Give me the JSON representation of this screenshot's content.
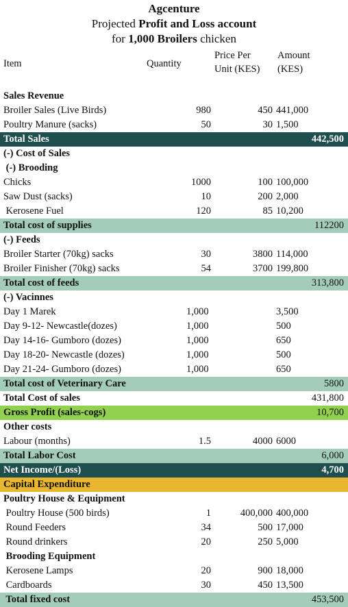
{
  "title": {
    "company": "Agcenture",
    "line2_pre": "Projected ",
    "line2_bold": "Profit and Loss account",
    "line3_pre": "for ",
    "line3_bold": "1,000 Broilers",
    "line3_post": " chicken"
  },
  "headers": {
    "item": "Item",
    "quantity": "Quantity",
    "price_1": "Price Per",
    "price_2": "Unit (KES)",
    "amount_1": "Amount",
    "amount_2": "(KES)"
  },
  "rows": [
    {
      "item": "Sales Revenue",
      "style": "section"
    },
    {
      "item": "Broiler Sales (Live Birds)",
      "qty": "980",
      "price": "450",
      "amount": "441,000"
    },
    {
      "item": "Poultry Manure (sacks)",
      "qty": "50",
      "price": "30",
      "amount": "1,500"
    },
    {
      "item": "Total Sales",
      "total": "442,500",
      "style": "dark"
    },
    {
      "item": "(-) Cost of Sales",
      "style": "section"
    },
    {
      "item": " (-) Brooding",
      "style": "section"
    },
    {
      "item": "Chicks",
      "qty": "1000",
      "price": "100",
      "amount": "100,000"
    },
    {
      "item": "Saw Dust (sacks)",
      "qty": "10",
      "price": "200",
      "amount": "2,000"
    },
    {
      "item": " Kerosene Fuel",
      "qty": "120",
      "price": "85",
      "amount": "10,200"
    },
    {
      "item": "Total cost of supplies",
      "total": "112200",
      "style": "mint"
    },
    {
      "item": "(-) Feeds",
      "style": "section"
    },
    {
      "item": "Broiler Starter (70kg) sacks",
      "qty": "30",
      "price": "3800",
      "amount": "114,000"
    },
    {
      "item": "Broiler Finisher (70kg) sacks",
      "qty": "54",
      "price": "3700",
      "amount": "199,800"
    },
    {
      "item": "Total cost of feeds",
      "total": "313,800",
      "style": "mint"
    },
    {
      "item": "(-) Vacinnes",
      "style": "section"
    },
    {
      "item": "Day 1 Marek",
      "qty": "1,000",
      "amount": "3,500",
      "qtyLeft": true
    },
    {
      "item": "Day 9-12- Newcastle(dozes)",
      "qty": "1,000",
      "amount": "500",
      "qtyLeft": true
    },
    {
      "item": "Day 14-16- Gumboro (dozes)",
      "qty": "1,000",
      "amount": "650",
      "qtyLeft": true
    },
    {
      "item": "Day 18-20- Newcastle (dozes)",
      "qty": "1,000",
      "amount": "500",
      "qtyLeft": true
    },
    {
      "item": "Day 21-24- Gumboro (dozes)",
      "qty": "1,000",
      "amount": "650",
      "qtyLeft": true
    },
    {
      "item": "Total cost of Veterinary Care",
      "total": "5800",
      "style": "mint"
    },
    {
      "item": "Total Cost of sales",
      "total": "431,800",
      "style": "boldplain"
    },
    {
      "item": "Gross Profit (sales-cogs)",
      "total": "10,700",
      "style": "lime"
    },
    {
      "item": "Other costs",
      "style": "section"
    },
    {
      "item": "Labour (months)",
      "qty": "1.5",
      "price": "4000",
      "amount": "6000"
    },
    {
      "item": "Total Labor Cost",
      "total": "6,000",
      "style": "mint"
    },
    {
      "item": "Net Income/(Loss)",
      "total": "4,700",
      "style": "dark"
    },
    {
      "item": "Capital Expenditure",
      "style": "gold"
    },
    {
      "item": "Poultry House & Equipment",
      "style": "section"
    },
    {
      "item": " Poultry House (500 birds)",
      "qty": "1",
      "price": "400,000",
      "amount": "400,000"
    },
    {
      "item": " Round Feeders",
      "qty": "34",
      "price": "500",
      "amount": "17,000"
    },
    {
      "item": " Round drinkers",
      "qty": "20",
      "price": "250",
      "amount": "5,000"
    },
    {
      "item": " Brooding Equipment",
      "style": "section"
    },
    {
      "item": " Kerosene Lamps",
      "qty": "20",
      "price": "900",
      "amount": "18,000"
    },
    {
      "item": " Cardboards",
      "qty": "30",
      "price": "450",
      "amount": "13,500"
    },
    {
      "item": " Total fixed cost",
      "total": "453,500",
      "style": "mint"
    }
  ],
  "colors": {
    "dark": "#1f4e4f",
    "mint": "#a3cdb9",
    "lime": "#92d050",
    "gold": "#e8b62f"
  }
}
